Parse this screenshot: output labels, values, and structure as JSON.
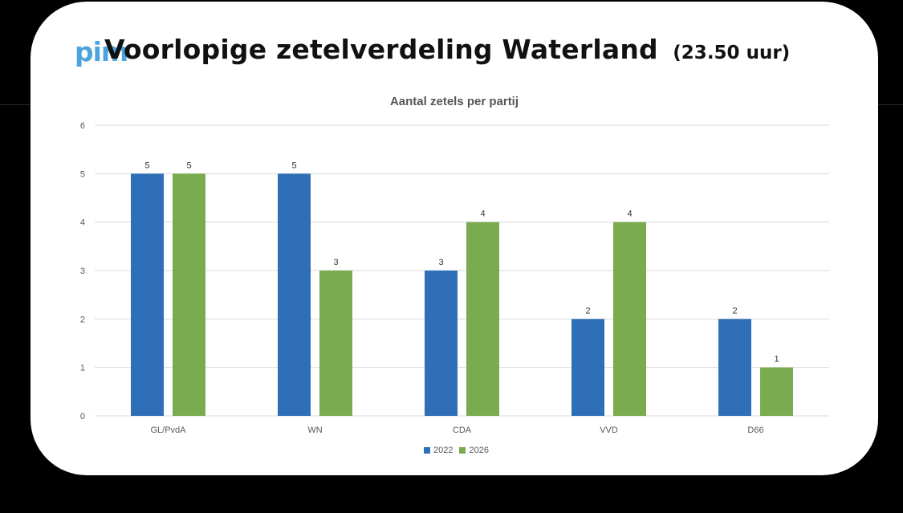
{
  "header": {
    "logo_text": "pim",
    "title": "Voorlopige zetelverdeling Waterland",
    "time": "(23.50 uur)"
  },
  "colors": {
    "series_2022": "#2e6fb8",
    "series_2026": "#7aab4f",
    "grid": "#d9d9d9",
    "axis_text": "#595959"
  },
  "chart_data": {
    "type": "bar",
    "title": "Aantal zetels per partij",
    "categories": [
      "GL/PvdA",
      "WN",
      "CDA",
      "VVD",
      "D66"
    ],
    "series": [
      {
        "name": "2022",
        "values": [
          5,
          5,
          3,
          2,
          2
        ]
      },
      {
        "name": "2026",
        "values": [
          5,
          3,
          4,
          4,
          1
        ]
      }
    ],
    "ylim": [
      0,
      6
    ],
    "yticks": [
      0,
      1,
      2,
      3,
      4,
      5,
      6
    ],
    "grid": true,
    "data_labels": true,
    "legend": "bottom"
  }
}
